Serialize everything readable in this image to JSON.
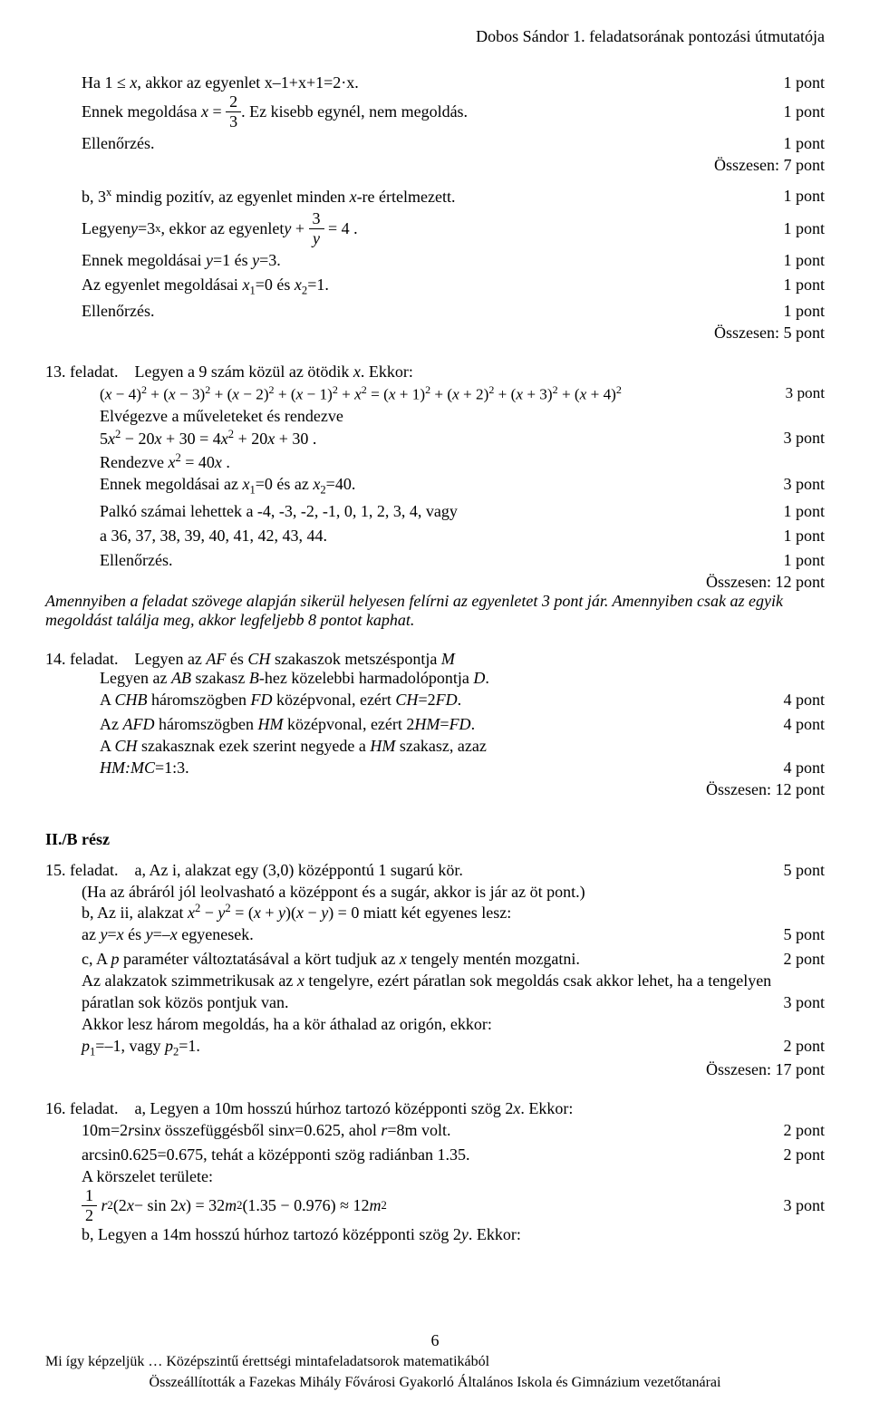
{
  "header": "Dobos Sándor 1. feladatsorának pontozási útmutatója",
  "p1": "1 pont",
  "p2": "2 pont",
  "p3": "3 pont",
  "p4": "4 pont",
  "p5": "5 pont",
  "sum7": "Összesen: 7 pont",
  "sum5": "Összesen: 5 pont",
  "sum12": "Összesen: 12 pont",
  "sum17": "Összesen: 17 pont",
  "t": {
    "ha": "Ha  1 ≤ ",
    "ha2": ", akkor az egyenlet  x–1+x+1=2·x.",
    "ennek_meg": "Ennek megoldása ",
    "ez_kisebb": ". Ez kisebb egynél, nem megoldás.",
    "ellen": "Ellenőrzés.",
    "b3x": "b,  3",
    "b3x_after": " mindig pozitív, az egyenlet minden ",
    "b3x_after2": "-re értelmezett.",
    "leg": "Legyen ",
    "leg2": "=3",
    "leg3": ", ekkor az egyenlet  ",
    "leg4": " = 4 .",
    "ennek_y": "Ennek megoldásai ",
    "ennek_y2": "=1 és ",
    "ennek_y3": "=3.",
    "azeg": "Az egyenlet megoldásai ",
    "azeg2": "=0 és ",
    "azeg3": "=1.",
    "f13": "13. feladat.",
    "f13b": "Legyen a 9 szám közül az ötödik ",
    "f13c": ". Ekkor:",
    "elveg": "Elvégezve a műveleteket és rendezve",
    "rend": "Rendezve ",
    "rend2": " = 40",
    "ennek_x": "Ennek megoldásai az ",
    "ennek_x2": "=0  és az ",
    "ennek_x3": "=40.",
    "palko": "Palkó számai lehettek a -4, -3, -2, -1, 0, 1, 2, 3, 4,  vagy",
    "a36": "a  36, 37, 38, 39, 40, 41, 42, 43, 44.",
    "amenny": "Amennyiben a feladat szövege alapján sikerül helyesen felírni az egyenletet 3 pont jár. Amennyiben csak az egyik megoldást találja meg, akkor legfeljebb 8 pontot kaphat.",
    "f14": "14. feladat.",
    "f14a": "Legyen az ",
    "f14a2": " és ",
    "f14a3": " szakaszok metszéspontja ",
    "f14b": "Legyen az ",
    "f14b2": " szakasz ",
    "f14b3": "-hez közelebbi harmadolópontja ",
    "f14c": "A ",
    "f14c2": " háromszögben ",
    "f14c3": " középvonal, ezért ",
    "f14c4": "=2",
    "f14d": "Az ",
    "f14d2": " háromszögben  ",
    "f14d3": " középvonal, ezért 2",
    "f14d4": "=",
    "f14e": "A ",
    "f14e2": " szakasznak ezek szerint negyede a ",
    "f14e3": " szakasz, azaz",
    "f14f": "HM:MC",
    "f14f2": "=1:3.",
    "iib": "II./B rész",
    "f15": "15. feladat.",
    "f15a": "a, Az i, alakzat egy (3,0) középpontú 1 sugarú kör.",
    "f15ha": "(Ha az ábráról jól leolvasható a középpont és a sugár,  akkor is jár az öt pont.)",
    "f15b": "b,  Az ii, alakzat ",
    "f15b2": " = (",
    "f15b3": ")(",
    "f15b4": ") = 0  miatt két egyenes lesz:",
    "f15az": "az ",
    "f15az1": "=",
    "f15az2": " és ",
    "f15az3": "=–",
    "f15az4": " egyenesek.",
    "f15c": "c,  A ",
    "f15c2": " paraméter változtatásával a kört tudjuk az ",
    "f15c3": " tengely mentén mozgatni.",
    "f15d": "Az alakzatok szimmetrikusak az ",
    "f15d2": " tengelyre, ezért páratlan sok megoldás csak akkor lehet, ha a tengelyen",
    "f15e": "páratlan sok közös pontjuk van.",
    "f15f": "Akkor lesz három megoldás, ha a kör áthalad az origón, ekkor:",
    "f15g1": "p",
    "f15g2": "=–1,  vagy ",
    "f15g3": "=1.",
    "f16": "16. feladat.",
    "f16a": "a,  Legyen a 10m hosszú húrhoz tartozó középponti szög 2",
    "f16a2": ".  Ekkor:",
    "f16b": "10m=2",
    "f16b2": "sin",
    "f16b3": " összefüggésből  sin",
    "f16b4": "=0.625,  ahol ",
    "f16b5": "=8m volt.",
    "f16c": "arcsin0.625=0.675,  tehát a középponti szög radiánban 1.35.",
    "f16d": "A körszelet területe:",
    "f16e1": "(2",
    "f16e2": " − sin 2",
    "f16e3": ") = 32",
    "f16e4": "(1.35 − 0.976) ≈ 12",
    "f16f": "b,  Legyen a 14m hosszú húrhoz tartozó középponti szög 2",
    "f16f2": ".  Ekkor:",
    "pnum": "6",
    "foot1": "Mi így képzeljük … Középszintű érettségi mintafeladatsorok matematikából",
    "foot2": "Összeállították a Fazekas Mihály Fővárosi Gyakorló Általános Iskola és Gimnázium vezetőtanárai"
  }
}
